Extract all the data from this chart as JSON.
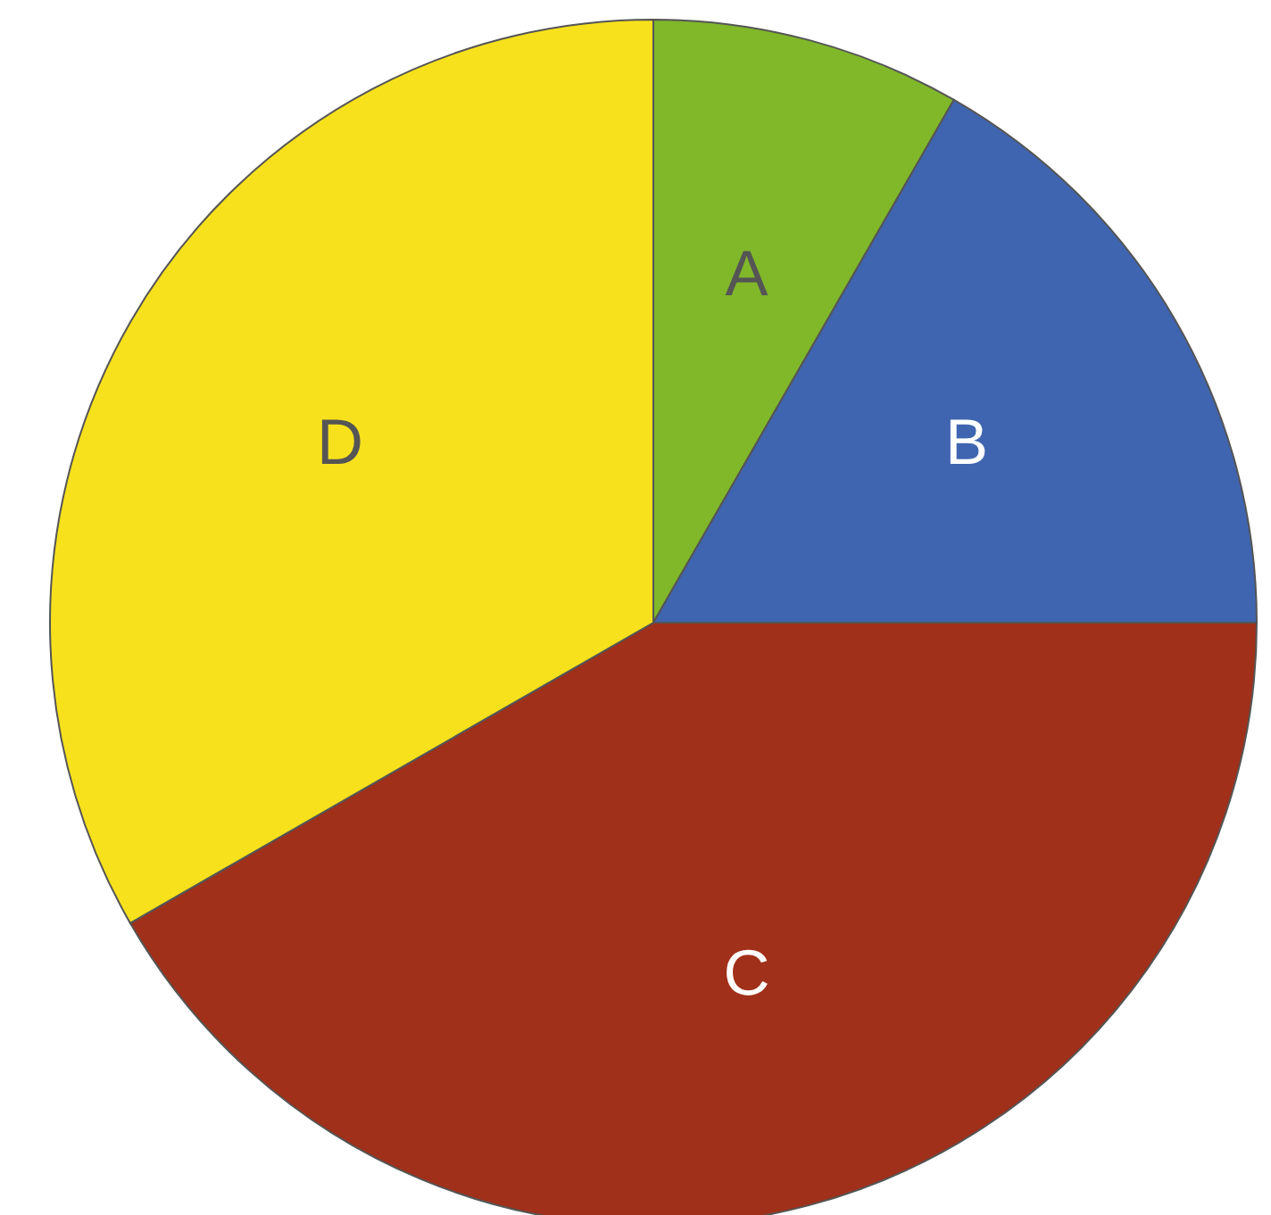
{
  "chart_data": {
    "type": "pie",
    "categories": [
      "A",
      "B",
      "C",
      "D"
    ],
    "values": [
      8.3,
      16.7,
      41.7,
      33.3
    ],
    "colors": [
      "#80b82a",
      "#3f65b0",
      "#a0301a",
      "#f7e11c"
    ]
  }
}
